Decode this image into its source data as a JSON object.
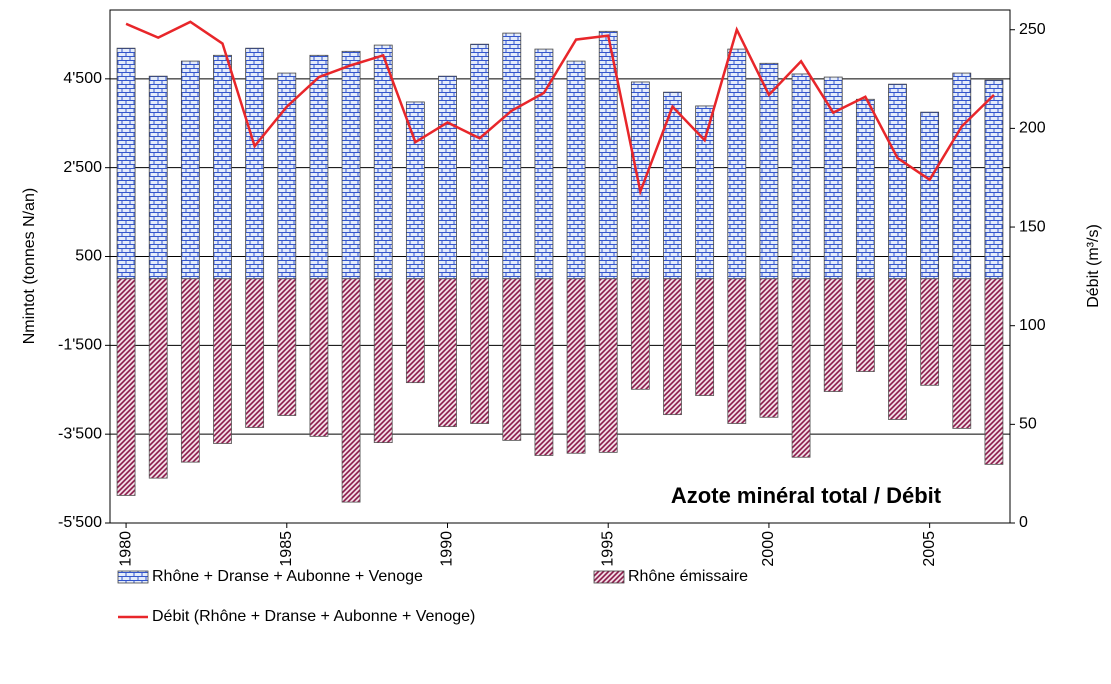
{
  "chart_data": {
    "type": "bar",
    "annotation": "Azote minéral total / Débit",
    "ylabel": "Nmintot (tonnes N/an)",
    "y2label": "Débit (m³/s)",
    "x": [
      1980,
      1981,
      1982,
      1983,
      1984,
      1985,
      1986,
      1987,
      1988,
      1989,
      1990,
      1991,
      1992,
      1993,
      1994,
      1995,
      1996,
      1997,
      1998,
      1999,
      2000,
      2001,
      2002,
      2003,
      2004,
      2005,
      2006,
      2007
    ],
    "xlim": [
      1979.5,
      2007.5
    ],
    "xticks": [
      1980,
      1985,
      1990,
      1995,
      2000,
      2005
    ],
    "ylim": [
      -5500,
      6050
    ],
    "yticks": [
      {
        "value": -5500,
        "label": "-5'500"
      },
      {
        "value": -3500,
        "label": "-3'500"
      },
      {
        "value": -1500,
        "label": "-1'500"
      },
      500,
      {
        "value": 2500,
        "label": "2'500"
      },
      {
        "value": 4500,
        "label": "4'500"
      }
    ],
    "y2lim": [
      0,
      260
    ],
    "y2ticks": [
      0,
      50,
      100,
      150,
      200,
      250
    ],
    "grid": true,
    "legend": "bottom",
    "series": [
      {
        "name": "Rhône + Dranse + Aubonne + Venoge",
        "type": "bar",
        "color": "#3355cc",
        "values": [
          5190,
          4560,
          4900,
          5030,
          5190,
          4630,
          5030,
          5120,
          5260,
          3980,
          4560,
          5280,
          5530,
          5170,
          4900,
          5570,
          4430,
          4200,
          3890,
          5170,
          4850,
          4610,
          4540,
          4040,
          4380,
          3750,
          4630,
          4470
        ]
      },
      {
        "name": "Rhône émissaire",
        "type": "bar",
        "color": "#8b1a4a",
        "values": [
          -4880,
          -4490,
          -4130,
          -3710,
          -3350,
          -3080,
          -3550,
          -5030,
          -3690,
          -2340,
          -3330,
          -3260,
          -3640,
          -3980,
          -3930,
          -3910,
          -2490,
          -3060,
          -2630,
          -3260,
          -3120,
          -4020,
          -2540,
          -2090,
          -3170,
          -2400,
          -3370,
          -4180
        ]
      },
      {
        "name": "Débit (Rhône + Dranse + Aubonne + Venoge)",
        "type": "line",
        "axis": "y2",
        "color": "#e8262a",
        "values": [
          253,
          246,
          254,
          243,
          191,
          211,
          226,
          232,
          237,
          193,
          203,
          195,
          209,
          218,
          245,
          247,
          168,
          211,
          194,
          250,
          217,
          234,
          208,
          216,
          185,
          174,
          201,
          217
        ]
      }
    ]
  }
}
